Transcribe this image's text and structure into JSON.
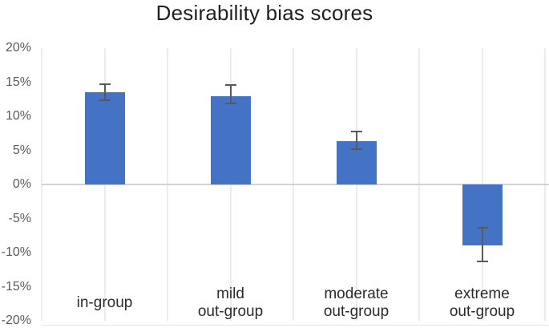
{
  "title": "Desirability bias scores",
  "colors": {
    "bar": "#4472c4",
    "error_bar": "#595959",
    "gridline": "#ececec",
    "zero_line": "#d2d2d2",
    "plot_border": "#e6e6e6",
    "tick_text": "#5a5a5a",
    "category_text": "#2b2b2b",
    "title_text": "#1f1f1f",
    "background": "#ffffff"
  },
  "chart_data": {
    "type": "bar",
    "title": "Desirability bias scores",
    "categories": [
      "in-group",
      "mild out-group",
      "moderate out-group",
      "extreme out-group"
    ],
    "category_label_lines": [
      [
        "in-group"
      ],
      [
        "mild",
        "out-group"
      ],
      [
        "moderate",
        "out-group"
      ],
      [
        "extreme",
        "out-group"
      ]
    ],
    "series": [
      {
        "name": "Desirability bias score",
        "values": [
          13.5,
          13.0,
          6.4,
          -8.9
        ]
      }
    ],
    "error_bars": {
      "upper": [
        14.7,
        14.6,
        7.8,
        -6.4
      ],
      "lower": [
        12.3,
        11.9,
        5.2,
        -11.3
      ]
    },
    "unit": "%",
    "ylim": [
      -20,
      20
    ],
    "ytick_interval": 5,
    "y_ticks": [
      {
        "value": 20,
        "label": "20%"
      },
      {
        "value": 15,
        "label": "15%"
      },
      {
        "value": 10,
        "label": "10%"
      },
      {
        "value": 5,
        "label": "5%"
      },
      {
        "value": 0,
        "label": "0%"
      },
      {
        "value": -5,
        "label": "-5%"
      },
      {
        "value": -10,
        "label": "-10%"
      },
      {
        "value": -15,
        "label": "-15%"
      },
      {
        "value": -20,
        "label": "-20%"
      }
    ],
    "grid": "vertical",
    "legend": "none",
    "xlabel": "",
    "ylabel": ""
  }
}
